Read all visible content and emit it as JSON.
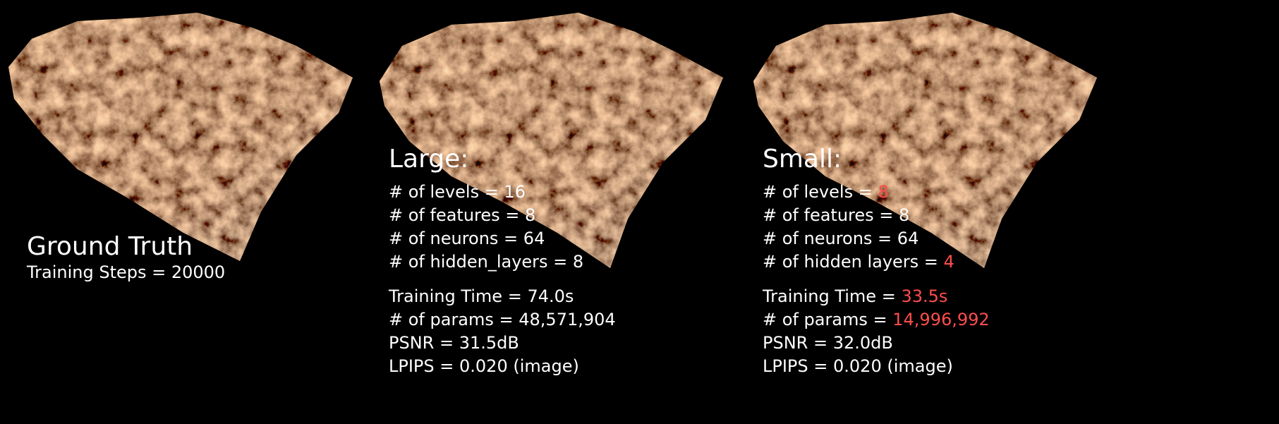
{
  "panels": [
    {
      "heading": "Ground Truth",
      "lines": [
        {
          "label": "Training Steps = ",
          "value": "20000",
          "highlight": false
        }
      ],
      "stats": []
    },
    {
      "heading": "Large:",
      "lines": [
        {
          "label": "# of levels = ",
          "value": "16",
          "highlight": false
        },
        {
          "label": "# of features = ",
          "value": "8",
          "highlight": false
        },
        {
          "label": "# of neurons = ",
          "value": "64",
          "highlight": false
        },
        {
          "label": "# of hidden_layers = ",
          "value": "8",
          "highlight": false
        }
      ],
      "stats": [
        {
          "label": "Training Time = ",
          "value": "74.0s",
          "highlight": false
        },
        {
          "label": "# of params = ",
          "value": "48,571,904",
          "highlight": false
        },
        {
          "label": "PSNR = ",
          "value": "31.5dB",
          "highlight": false
        },
        {
          "label": "LPIPS = ",
          "value": "0.020 (image)",
          "highlight": false
        }
      ]
    },
    {
      "heading": "Small:",
      "lines": [
        {
          "label": "# of levels = ",
          "value": "8",
          "highlight": true
        },
        {
          "label": "# of features = ",
          "value": "8",
          "highlight": false
        },
        {
          "label": "# of neurons = ",
          "value": "64",
          "highlight": false
        },
        {
          "label": "# of hidden layers = ",
          "value": "4",
          "highlight": true
        }
      ],
      "stats": [
        {
          "label": "Training Time = ",
          "value": "33.5s",
          "highlight": true
        },
        {
          "label": "# of params = ",
          "value": "14,996,992",
          "highlight": true
        },
        {
          "label": "PSNR = ",
          "value": "32.0dB",
          "highlight": false
        },
        {
          "label": "LPIPS = ",
          "value": "0.020 (image)",
          "highlight": false
        }
      ]
    }
  ],
  "colors": {
    "background": "#000000",
    "text": "#ffffff",
    "highlight": "#ff4d4d",
    "terrain_orange": "#c98a4a",
    "terrain_dark": "#5a3a1e",
    "terrain_blue": "#5f8fa8"
  }
}
